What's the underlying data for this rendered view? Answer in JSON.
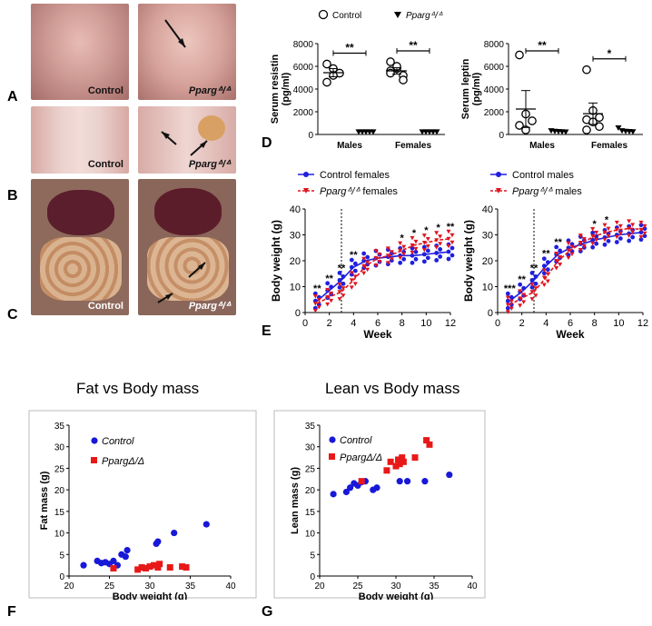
{
  "panel_labels": {
    "A": "A",
    "B": "B",
    "C": "C",
    "D": "D",
    "E": "E",
    "F": "F",
    "G": "G"
  },
  "photos": {
    "A_left_caption": "Control",
    "A_right_caption": "Ppargᐞ/ᐞ",
    "B_left_caption": "Control",
    "B_right_caption": "Ppargᐞ/ᐞ",
    "C_left_caption": "Control",
    "C_right_caption": "Ppargᐞ/ᐞ"
  },
  "colors": {
    "control": "#1f1fe0",
    "pparg": "#e0141e",
    "blue_dot": "#1818d8",
    "red_sq": "#e81818"
  },
  "chart_data": [
    {
      "id": "D1",
      "type": "scatter",
      "title": "",
      "ylabel": "Serum resistin (pg/ml)",
      "ylim": [
        0,
        8000
      ],
      "yticks": [
        "0",
        "2000",
        "4000",
        "6000",
        "8000"
      ],
      "categories": [
        "Males",
        "Females"
      ],
      "legend": [
        "Control",
        "Ppargᐞ/ᐞ"
      ],
      "significance": [
        "**",
        "**"
      ],
      "series": [
        {
          "name": "Control",
          "Males": [
            6200,
            5800,
            5400,
            4600,
            5200
          ],
          "Females": [
            6400,
            5800,
            5200,
            5600,
            6000,
            4800,
            5400
          ]
        },
        {
          "name": "Ppargᐞ/ᐞ",
          "Males": [
            50,
            50,
            50,
            50,
            50
          ],
          "Females": [
            50,
            50,
            50,
            50,
            50
          ]
        }
      ]
    },
    {
      "id": "D2",
      "type": "scatter",
      "title": "",
      "ylabel": "Serum leptin (pg/ml)",
      "ylim": [
        0,
        8000
      ],
      "yticks": [
        "0",
        "2000",
        "4000",
        "6000",
        "8000"
      ],
      "categories": [
        "Males",
        "Females"
      ],
      "significance": [
        "**",
        "*"
      ],
      "series": [
        {
          "name": "Control",
          "Males": [
            7000,
            1800,
            1200,
            800,
            400
          ],
          "Females": [
            5700,
            2100,
            1500,
            1300,
            1100,
            700,
            400
          ]
        },
        {
          "name": "Ppargᐞ/ᐞ",
          "Males": [
            150,
            100,
            80,
            60,
            40
          ],
          "Females": [
            400,
            150,
            100,
            80,
            60
          ]
        }
      ]
    },
    {
      "id": "E1",
      "type": "line",
      "xlabel": "Week",
      "ylabel": "Body weight (g)",
      "xlim": [
        0,
        12
      ],
      "ylim": [
        0,
        40
      ],
      "xticks": [
        "0",
        "2",
        "4",
        "6",
        "8",
        "10",
        "12"
      ],
      "yticks": [
        "0",
        "10",
        "20",
        "30",
        "40"
      ],
      "legend": [
        "Control females",
        "Ppargᐞ/ᐞ females"
      ],
      "series": [
        {
          "name": "Control females",
          "values": [
            4.5,
            8.5,
            12.5,
            17.5,
            20,
            21,
            21.5,
            22,
            22,
            22.5,
            23,
            23.5
          ]
        },
        {
          "name": "Ppargᐞ/ᐞ females",
          "values": [
            3.5,
            6,
            8,
            12.5,
            18,
            21,
            22,
            24,
            26,
            27,
            28,
            28.5
          ]
        }
      ],
      "significance": [
        {
          "week": 1,
          "text": "**"
        },
        {
          "week": 2,
          "text": "**"
        },
        {
          "week": 3,
          "text": "**"
        },
        {
          "week": 4,
          "text": "**"
        },
        {
          "week": 9,
          "text": "*"
        },
        {
          "week": 10,
          "text": "*"
        },
        {
          "week": 11,
          "text": "*"
        },
        {
          "week": 12,
          "text": "**"
        },
        {
          "week": 8,
          "text": "*"
        }
      ]
    },
    {
      "id": "E2",
      "type": "line",
      "xlabel": "Week",
      "ylabel": "Body weight (g)",
      "xlim": [
        0,
        12
      ],
      "ylim": [
        0,
        40
      ],
      "xticks": [
        "0",
        "2",
        "4",
        "6",
        "8",
        "10",
        "12"
      ],
      "yticks": [
        "0",
        "10",
        "20",
        "30",
        "40"
      ],
      "legend": [
        "Control males",
        "Ppargᐞ/ᐞ males"
      ],
      "series": [
        {
          "name": "Control males",
          "values": [
            4.5,
            8,
            12.5,
            18,
            22.5,
            25,
            26.5,
            28,
            29,
            30,
            30.5,
            31
          ]
        },
        {
          "name": "Ppargᐞ/ᐞ males",
          "values": [
            3,
            5.5,
            8,
            13.5,
            20,
            24,
            27,
            29.5,
            31,
            32,
            32.5,
            32
          ]
        }
      ],
      "significance": [
        {
          "week": 1,
          "text": "***"
        },
        {
          "week": 2,
          "text": "**"
        },
        {
          "week": 3,
          "text": "**"
        },
        {
          "week": 4,
          "text": "**"
        },
        {
          "week": 5,
          "text": "**"
        },
        {
          "week": 8,
          "text": "*"
        },
        {
          "week": 9,
          "text": "*"
        }
      ]
    },
    {
      "id": "F",
      "type": "scatter",
      "title": "Fat vs Body mass",
      "xlabel": "Body weight (g)",
      "ylabel": "Fat mass (g)",
      "xlim": [
        20,
        40
      ],
      "ylim": [
        0,
        35
      ],
      "xticks": [
        "20",
        "25",
        "30",
        "35",
        "40"
      ],
      "yticks": [
        "0",
        "5",
        "10",
        "15",
        "20",
        "25",
        "30",
        "35"
      ],
      "legend": [
        "Control",
        "PpargΔ/Δ"
      ],
      "series": [
        {
          "name": "Control",
          "points": [
            [
              21.8,
              2.5
            ],
            [
              23.5,
              3.5
            ],
            [
              24,
              3
            ],
            [
              24.5,
              3.2
            ],
            [
              25,
              2.8
            ],
            [
              25.5,
              3.5
            ],
            [
              26,
              2.5
            ],
            [
              26.5,
              5
            ],
            [
              27,
              4.5
            ],
            [
              27.2,
              6
            ],
            [
              30.8,
              7.5
            ],
            [
              31,
              8
            ],
            [
              33,
              10
            ],
            [
              37,
              12
            ]
          ]
        },
        {
          "name": "PpargΔ/Δ",
          "points": [
            [
              25.5,
              1.8
            ],
            [
              28.5,
              1.5
            ],
            [
              29,
              2
            ],
            [
              29.5,
              1.8
            ],
            [
              30,
              2.2
            ],
            [
              30.5,
              2.5
            ],
            [
              31,
              2
            ],
            [
              31.2,
              2.8
            ],
            [
              32.5,
              2
            ],
            [
              34,
              2.2
            ],
            [
              34.5,
              2
            ]
          ]
        }
      ]
    },
    {
      "id": "G",
      "type": "scatter",
      "title": "Lean vs Body mass",
      "xlabel": "Body weight (g)",
      "ylabel": "Lean mass (g)",
      "xlim": [
        20,
        40
      ],
      "ylim": [
        0,
        35
      ],
      "xticks": [
        "20",
        "25",
        "30",
        "35",
        "40"
      ],
      "yticks": [
        "0",
        "5",
        "10",
        "15",
        "20",
        "25",
        "30",
        "35"
      ],
      "legend": [
        "Control",
        "PpargΔ/Δ"
      ],
      "series": [
        {
          "name": "Control",
          "points": [
            [
              21.8,
              19
            ],
            [
              23.5,
              19.5
            ],
            [
              24,
              20.5
            ],
            [
              24.5,
              21.5
            ],
            [
              25,
              21
            ],
            [
              25.5,
              21.8
            ],
            [
              26,
              22
            ],
            [
              27,
              20
            ],
            [
              27.5,
              20.5
            ],
            [
              30.5,
              22
            ],
            [
              31.5,
              22
            ],
            [
              33.8,
              22
            ],
            [
              37,
              23.5
            ]
          ]
        },
        {
          "name": "PpargΔ/Δ",
          "points": [
            [
              25.5,
              22
            ],
            [
              28.8,
              24.5
            ],
            [
              29.3,
              26.5
            ],
            [
              30,
              25.5
            ],
            [
              30.3,
              27
            ],
            [
              30.5,
              26
            ],
            [
              30.8,
              27.5
            ],
            [
              31,
              26.5
            ],
            [
              32.5,
              27.5
            ],
            [
              34,
              31.5
            ],
            [
              34.4,
              30.5
            ]
          ]
        }
      ]
    }
  ]
}
